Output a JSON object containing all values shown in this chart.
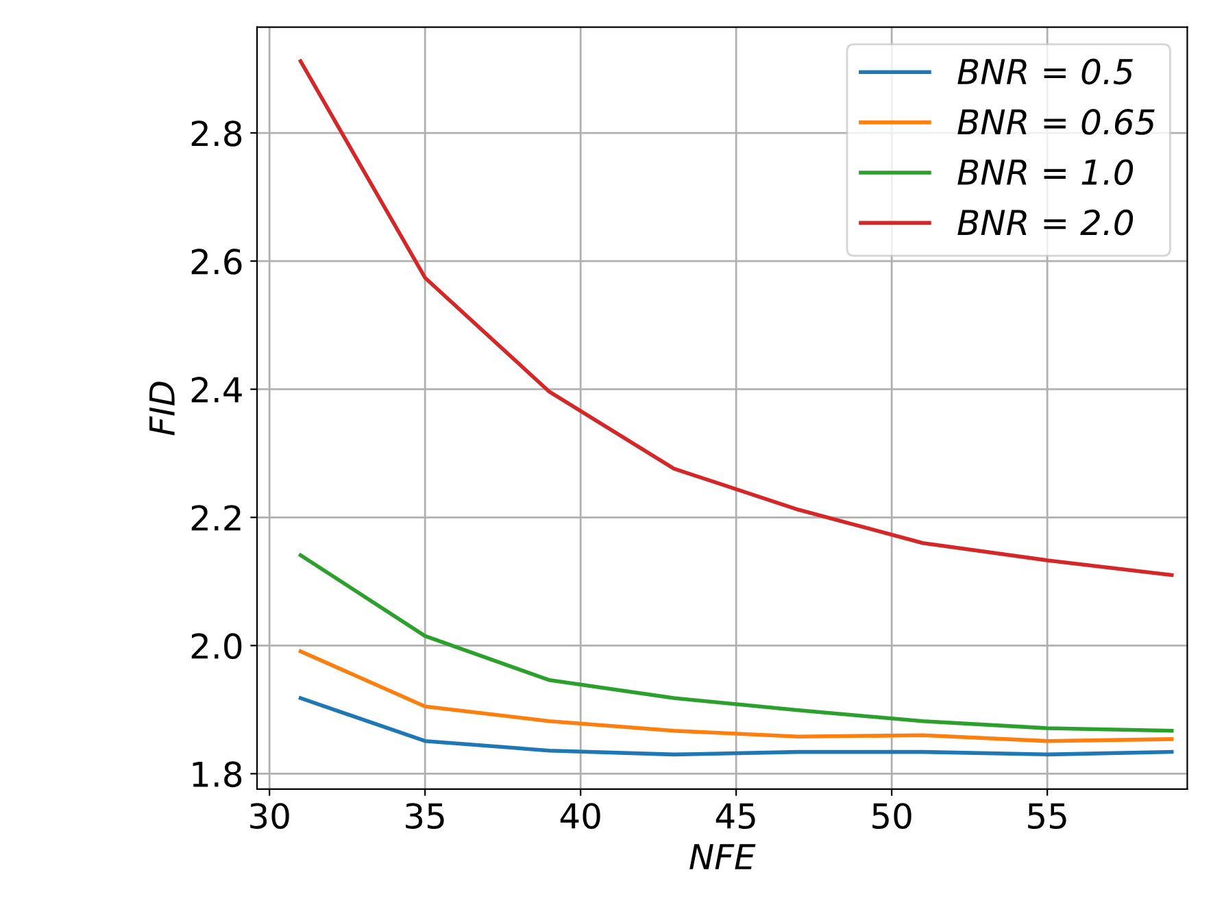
{
  "chart_data": {
    "type": "line",
    "xlabel": "NFE",
    "ylabel": "FID",
    "x": [
      31,
      35,
      39,
      43,
      47,
      51,
      55,
      59
    ],
    "series": [
      {
        "name": "BNR = 0.5",
        "color": "#1f77b4",
        "values": [
          1.918,
          1.851,
          1.836,
          1.83,
          1.834,
          1.834,
          1.83,
          1.834
        ]
      },
      {
        "name": "BNR = 0.65",
        "color": "#ff7f0e",
        "values": [
          1.991,
          1.905,
          1.882,
          1.867,
          1.858,
          1.86,
          1.851,
          1.854
        ]
      },
      {
        "name": "BNR = 1.0",
        "color": "#2ca02c",
        "values": [
          2.141,
          2.015,
          1.946,
          1.918,
          1.899,
          1.882,
          1.871,
          1.867
        ]
      },
      {
        "name": "BNR = 2.0",
        "color": "#d62728",
        "values": [
          2.912,
          2.574,
          2.396,
          2.276,
          2.212,
          2.16,
          2.133,
          2.11
        ]
      }
    ],
    "xlim": [
      29.6,
      59.5
    ],
    "xticks": [
      30,
      35,
      40,
      45,
      50,
      55
    ],
    "ylim": [
      1.776,
      2.965
    ],
    "yticks": [
      1.8,
      {
        "value": 2,
        "label": "2.0"
      },
      2.2,
      2.4,
      2.6,
      2.8
    ],
    "grid": true,
    "legend": "top right",
    "marker": "none",
    "line_style": "solid"
  }
}
